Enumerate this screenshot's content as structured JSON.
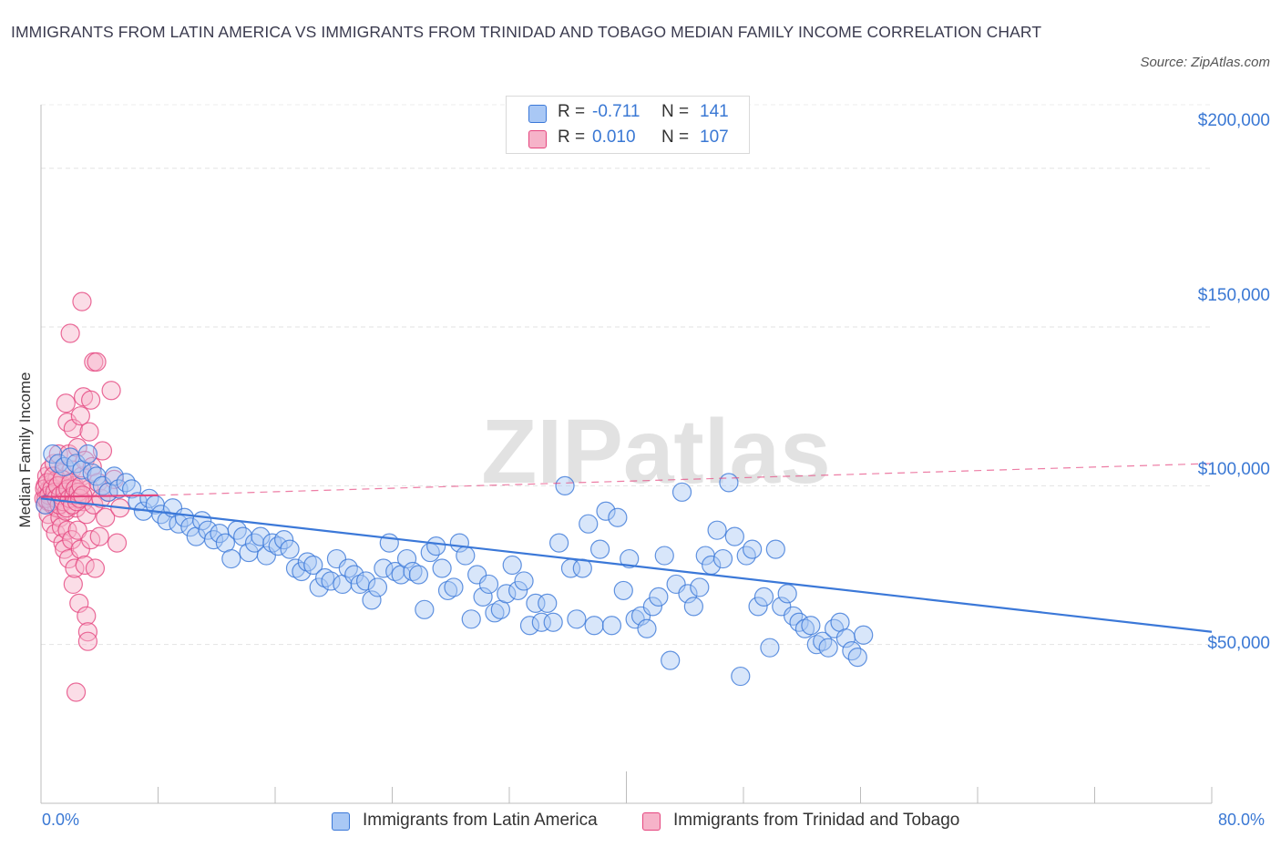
{
  "title": "IMMIGRANTS FROM LATIN AMERICA VS IMMIGRANTS FROM TRINIDAD AND TOBAGO MEDIAN FAMILY INCOME CORRELATION CHART",
  "source": "Source: ZipAtlas.com",
  "watermark": "ZIPatlas",
  "legend": {
    "rows": [
      {
        "r_label": "R =",
        "r_value": "-0.711",
        "n_label": "N =",
        "n_value": "141"
      },
      {
        "r_label": "R =",
        "r_value": "0.010",
        "n_label": "N =",
        "n_value": "107"
      }
    ]
  },
  "colors": {
    "blue": "#3b78d8",
    "blue_fill": "#a9c8f5",
    "pink": "#e5467f",
    "pink_fill": "#f6b3c9",
    "axis_text": "#3a78d4"
  },
  "chart_data": {
    "type": "scatter",
    "title": "IMMIGRANTS FROM LATIN AMERICA VS IMMIGRANTS FROM TRINIDAD AND TOBAGO MEDIAN FAMILY INCOME CORRELATION CHART",
    "xlabel": "",
    "ylabel": "Median Family Income",
    "xlim": [
      0,
      80
    ],
    "ylim": [
      0,
      220000
    ],
    "x_tick_labels": [
      "0.0%",
      "80.0%"
    ],
    "y_tick_labels": [
      "$50,000",
      "$100,000",
      "$150,000",
      "$200,000"
    ],
    "y_ticks": [
      50000,
      100000,
      150000,
      200000
    ],
    "grid": true,
    "legend_position": "top-center",
    "series": [
      {
        "name": "Immigrants from Latin America",
        "color": "#3b78d8",
        "R": -0.711,
        "N": 141,
        "trend": {
          "x0": 0,
          "y0": 96000,
          "x1": 80,
          "y1": 54000,
          "style": "solid"
        },
        "points": [
          [
            0.3,
            94000
          ],
          [
            0.8,
            110000
          ],
          [
            1.2,
            107000
          ],
          [
            1.6,
            106000
          ],
          [
            2.0,
            109000
          ],
          [
            2.4,
            107000
          ],
          [
            2.8,
            105000
          ],
          [
            3.2,
            110000
          ],
          [
            3.5,
            104000
          ],
          [
            3.8,
            103000
          ],
          [
            4.2,
            100000
          ],
          [
            4.6,
            98000
          ],
          [
            5.0,
            103000
          ],
          [
            5.3,
            99000
          ],
          [
            5.8,
            101000
          ],
          [
            6.2,
            99000
          ],
          [
            6.6,
            95000
          ],
          [
            7.0,
            92000
          ],
          [
            7.4,
            96000
          ],
          [
            7.8,
            94000
          ],
          [
            8.2,
            91000
          ],
          [
            8.6,
            89000
          ],
          [
            9.0,
            93000
          ],
          [
            9.4,
            88000
          ],
          [
            9.8,
            90000
          ],
          [
            10.2,
            87000
          ],
          [
            10.6,
            84000
          ],
          [
            11.0,
            89000
          ],
          [
            11.4,
            86000
          ],
          [
            11.8,
            83000
          ],
          [
            12.2,
            85000
          ],
          [
            12.6,
            82000
          ],
          [
            13.0,
            77000
          ],
          [
            13.4,
            86000
          ],
          [
            13.8,
            84000
          ],
          [
            14.2,
            79000
          ],
          [
            14.6,
            82000
          ],
          [
            15.0,
            84000
          ],
          [
            15.4,
            78000
          ],
          [
            15.8,
            82000
          ],
          [
            16.2,
            81000
          ],
          [
            16.6,
            83000
          ],
          [
            17.0,
            80000
          ],
          [
            17.4,
            74000
          ],
          [
            17.8,
            73000
          ],
          [
            18.2,
            76000
          ],
          [
            18.6,
            75000
          ],
          [
            19.0,
            68000
          ],
          [
            19.4,
            71000
          ],
          [
            19.8,
            70000
          ],
          [
            20.2,
            77000
          ],
          [
            20.6,
            69000
          ],
          [
            21.0,
            74000
          ],
          [
            21.4,
            72000
          ],
          [
            21.8,
            69000
          ],
          [
            22.2,
            70000
          ],
          [
            22.6,
            64000
          ],
          [
            23.0,
            68000
          ],
          [
            23.4,
            74000
          ],
          [
            23.8,
            82000
          ],
          [
            24.2,
            73000
          ],
          [
            24.6,
            72000
          ],
          [
            25.0,
            77000
          ],
          [
            25.4,
            73000
          ],
          [
            25.8,
            72000
          ],
          [
            26.2,
            61000
          ],
          [
            26.6,
            79000
          ],
          [
            27.0,
            81000
          ],
          [
            27.4,
            74000
          ],
          [
            27.8,
            67000
          ],
          [
            28.2,
            68000
          ],
          [
            28.6,
            82000
          ],
          [
            29.0,
            78000
          ],
          [
            29.4,
            58000
          ],
          [
            29.8,
            72000
          ],
          [
            30.2,
            65000
          ],
          [
            30.6,
            69000
          ],
          [
            31.0,
            60000
          ],
          [
            31.4,
            61000
          ],
          [
            31.8,
            66000
          ],
          [
            32.2,
            75000
          ],
          [
            32.6,
            67000
          ],
          [
            33.0,
            70000
          ],
          [
            33.4,
            56000
          ],
          [
            33.8,
            63000
          ],
          [
            34.2,
            57000
          ],
          [
            34.6,
            63000
          ],
          [
            35.0,
            57000
          ],
          [
            35.4,
            82000
          ],
          [
            35.8,
            100000
          ],
          [
            36.2,
            74000
          ],
          [
            36.6,
            58000
          ],
          [
            37.0,
            74000
          ],
          [
            37.4,
            88000
          ],
          [
            37.8,
            56000
          ],
          [
            38.2,
            80000
          ],
          [
            38.6,
            92000
          ],
          [
            39.0,
            56000
          ],
          [
            39.4,
            90000
          ],
          [
            39.8,
            67000
          ],
          [
            40.2,
            77000
          ],
          [
            40.6,
            58000
          ],
          [
            41.0,
            59000
          ],
          [
            41.4,
            55000
          ],
          [
            41.8,
            62000
          ],
          [
            42.2,
            65000
          ],
          [
            42.6,
            78000
          ],
          [
            43.0,
            45000
          ],
          [
            43.4,
            69000
          ],
          [
            43.8,
            98000
          ],
          [
            44.2,
            66000
          ],
          [
            44.6,
            62000
          ],
          [
            45.0,
            68000
          ],
          [
            45.4,
            78000
          ],
          [
            45.8,
            75000
          ],
          [
            46.2,
            86000
          ],
          [
            46.6,
            77000
          ],
          [
            47.0,
            101000
          ],
          [
            47.4,
            84000
          ],
          [
            47.8,
            40000
          ],
          [
            48.2,
            78000
          ],
          [
            48.6,
            80000
          ],
          [
            49.0,
            62000
          ],
          [
            49.4,
            65000
          ],
          [
            49.8,
            49000
          ],
          [
            50.2,
            80000
          ],
          [
            50.6,
            62000
          ],
          [
            51.0,
            66000
          ],
          [
            51.4,
            59000
          ],
          [
            51.8,
            57000
          ],
          [
            52.2,
            55000
          ],
          [
            52.6,
            56000
          ],
          [
            53.0,
            50000
          ],
          [
            53.4,
            51000
          ],
          [
            53.8,
            49000
          ],
          [
            54.2,
            55000
          ],
          [
            54.6,
            57000
          ],
          [
            55.0,
            52000
          ],
          [
            55.4,
            48000
          ],
          [
            55.8,
            46000
          ],
          [
            56.2,
            53000
          ]
        ]
      },
      {
        "name": "Immigrants from Trinidad and Tobago",
        "color": "#e5467f",
        "R": 0.01,
        "N": 107,
        "trend": {
          "x0": 0,
          "y0": 96500,
          "x1": 8,
          "y1": 97000,
          "style": "solid"
        },
        "trend_extension": {
          "x0": 8,
          "y0": 97000,
          "x1": 80,
          "y1": 107000,
          "style": "dashed"
        },
        "points": [
          [
            0.2,
            96000
          ],
          [
            0.3,
            100000
          ],
          [
            0.3,
            94000
          ],
          [
            0.4,
            98000
          ],
          [
            0.4,
            103000
          ],
          [
            0.5,
            95000
          ],
          [
            0.5,
            91000
          ],
          [
            0.6,
            99000
          ],
          [
            0.6,
            105000
          ],
          [
            0.7,
            97000
          ],
          [
            0.7,
            88000
          ],
          [
            0.8,
            101000
          ],
          [
            0.8,
            94000
          ],
          [
            0.9,
            96000
          ],
          [
            0.9,
            107000
          ],
          [
            1.0,
            99000
          ],
          [
            1.0,
            85000
          ],
          [
            1.1,
            102000
          ],
          [
            1.1,
            93000
          ],
          [
            1.2,
            97000
          ],
          [
            1.2,
            110000
          ],
          [
            1.3,
            90000
          ],
          [
            1.3,
            100000
          ],
          [
            1.4,
            87000
          ],
          [
            1.4,
            95000
          ],
          [
            1.5,
            104000
          ],
          [
            1.5,
            82000
          ],
          [
            1.6,
            98000
          ],
          [
            1.6,
            80000
          ],
          [
            1.7,
            126000
          ],
          [
            1.7,
            92000
          ],
          [
            1.8,
            120000
          ],
          [
            1.8,
            86000
          ],
          [
            1.9,
            110000
          ],
          [
            1.9,
            77000
          ],
          [
            2.0,
            148000
          ],
          [
            2.0,
            96000
          ],
          [
            2.1,
            105000
          ],
          [
            2.1,
            83000
          ],
          [
            2.2,
            118000
          ],
          [
            2.2,
            69000
          ],
          [
            2.3,
            100000
          ],
          [
            2.3,
            74000
          ],
          [
            2.4,
            35000
          ],
          [
            2.4,
            93000
          ],
          [
            2.5,
            112000
          ],
          [
            2.5,
            86000
          ],
          [
            2.6,
            63000
          ],
          [
            2.6,
            97000
          ],
          [
            2.7,
            122000
          ],
          [
            2.7,
            80000
          ],
          [
            2.8,
            158000
          ],
          [
            2.8,
            103000
          ],
          [
            2.9,
            128000
          ],
          [
            2.9,
            95000
          ],
          [
            3.0,
            75000
          ],
          [
            3.0,
            108000
          ],
          [
            3.1,
            91000
          ],
          [
            3.1,
            59000
          ],
          [
            3.2,
            54000
          ],
          [
            3.2,
            51000
          ],
          [
            3.3,
            117000
          ],
          [
            3.3,
            99000
          ],
          [
            3.4,
            83000
          ],
          [
            3.4,
            127000
          ],
          [
            3.5,
            106000
          ],
          [
            3.6,
            139000
          ],
          [
            3.6,
            94000
          ],
          [
            3.7,
            74000
          ],
          [
            3.8,
            139000
          ],
          [
            3.9,
            101000
          ],
          [
            4.0,
            84000
          ],
          [
            4.1,
            96000
          ],
          [
            4.2,
            111000
          ],
          [
            4.4,
            90000
          ],
          [
            4.6,
            98000
          ],
          [
            4.8,
            130000
          ],
          [
            5.0,
            102000
          ],
          [
            5.2,
            82000
          ],
          [
            5.4,
            93000
          ],
          [
            0.25,
            99000
          ],
          [
            0.35,
            96000
          ],
          [
            0.45,
            101000
          ],
          [
            0.55,
            97000
          ],
          [
            0.65,
            95000
          ],
          [
            0.75,
            99000
          ],
          [
            0.85,
            103000
          ],
          [
            0.95,
            98000
          ],
          [
            1.05,
            96000
          ],
          [
            1.15,
            100000
          ],
          [
            1.25,
            94000
          ],
          [
            1.35,
            97000
          ],
          [
            1.45,
            102000
          ],
          [
            1.55,
            95000
          ],
          [
            1.65,
            98000
          ],
          [
            1.75,
            93000
          ],
          [
            1.85,
            99000
          ],
          [
            1.95,
            96000
          ],
          [
            2.05,
            101000
          ],
          [
            2.15,
            94000
          ],
          [
            2.25,
            97000
          ],
          [
            2.35,
            99000
          ],
          [
            2.45,
            95000
          ],
          [
            2.55,
            98000
          ],
          [
            2.65,
            96000
          ],
          [
            2.75,
            100000
          ],
          [
            2.85,
            97000
          ]
        ]
      }
    ]
  },
  "axis": {
    "y_title": "Median Family Income",
    "x_min_label": "0.0%",
    "x_max_label": "80.0%",
    "y_labels": [
      "$200,000",
      "$150,000",
      "$100,000",
      "$50,000"
    ]
  },
  "bottom_legend": {
    "items": [
      "Immigrants from Latin America",
      "Immigrants from Trinidad and Tobago"
    ]
  }
}
